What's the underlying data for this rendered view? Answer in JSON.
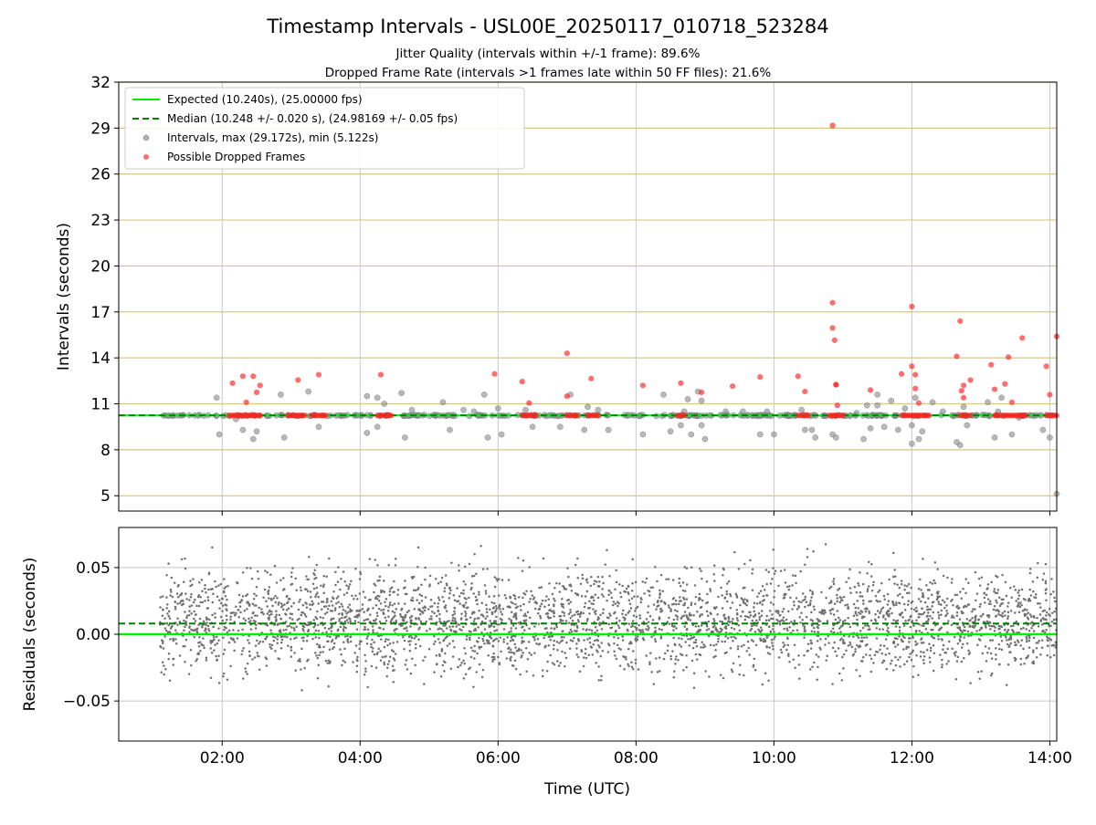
{
  "title": "Timestamp Intervals - USL00E_20250117_010718_523284",
  "subtitle_1": "Jitter Quality (intervals within +/-1 frame): 89.6%",
  "subtitle_2": "Dropped Frame Rate (intervals >1 frames late within 50 FF files): 21.6%",
  "colors": {
    "expected": "#00ee00",
    "median": "#008000",
    "intervals": "#888888",
    "dropped": "#ff2020",
    "hgrid_top": "#d8c48a",
    "grid": "#c8c8c8",
    "residuals": "#707070"
  },
  "chart_data": [
    {
      "type": "scatter",
      "ylabel": "Intervals (seconds)",
      "xlim_hours": [
        0.5,
        14.1
      ],
      "ylim": [
        4,
        32
      ],
      "yticks": [
        5,
        8,
        11,
        14,
        17,
        20,
        23,
        26,
        29,
        32
      ],
      "ytick_labels": [
        "5",
        "8",
        "11",
        "14",
        "17",
        "20",
        "23",
        "26",
        "29",
        "32"
      ],
      "grid": true,
      "legend_placement": "top-left",
      "legend": [
        {
          "label": "Expected (10.240s), (25.00000 fps)",
          "style": "solid-line",
          "color": "#00ee00"
        },
        {
          "label": "Median (10.248 +/- 0.020 s), (24.98169 +/- 0.05 fps)",
          "style": "dashed-line",
          "color": "#008000"
        },
        {
          "label": "Intervals, max (29.172s), min (5.122s)",
          "style": "marker",
          "color": "#888888"
        },
        {
          "label": "Possible Dropped Frames",
          "style": "marker",
          "color": "#ff2020"
        }
      ],
      "expected_interval": 10.24,
      "median_interval": 10.248,
      "series": [
        {
          "name": "Intervals, max (29.172s), min (5.122s)",
          "x": [
            1.15,
            1.4,
            1.6,
            1.92,
            1.96,
            2.2,
            2.3,
            2.45,
            2.5,
            2.85,
            2.9,
            3.25,
            3.4,
            4.1,
            4.1,
            4.25,
            4.25,
            4.35,
            4.6,
            4.65,
            4.75,
            5.2,
            5.3,
            5.5,
            5.65,
            5.8,
            5.85,
            6.0,
            6.05,
            6.4,
            6.5,
            6.9,
            7.05,
            7.25,
            7.3,
            7.45,
            7.6,
            8.1,
            8.4,
            8.5,
            8.65,
            8.7,
            8.75,
            8.8,
            8.9,
            8.95,
            8.95,
            9.0,
            9.3,
            9.55,
            9.8,
            9.9,
            10.0,
            10.4,
            10.45,
            10.55,
            10.6,
            10.85,
            10.9,
            11.2,
            11.3,
            11.35,
            11.4,
            11.5,
            11.5,
            11.6,
            11.7,
            11.8,
            11.9,
            12.0,
            12.0,
            12.05,
            12.1,
            12.15,
            12.3,
            12.45,
            12.6,
            12.65,
            12.7,
            12.75,
            12.8,
            13.1,
            13.2,
            13.25,
            13.3,
            13.45,
            13.55,
            13.9,
            14.0,
            14.1
          ],
          "y": [
            10.24,
            10.24,
            10.24,
            11.4,
            9.0,
            10.0,
            9.3,
            8.7,
            9.2,
            11.6,
            8.8,
            11.8,
            9.5,
            11.5,
            9.1,
            11.4,
            9.5,
            11.0,
            11.7,
            8.8,
            10.6,
            11.1,
            9.3,
            10.6,
            10.5,
            11.6,
            8.8,
            10.7,
            9.0,
            10.6,
            9.5,
            9.5,
            11.6,
            9.3,
            10.8,
            10.6,
            9.3,
            9.0,
            11.6,
            9.2,
            9.6,
            10.5,
            11.3,
            9.0,
            11.8,
            9.6,
            11.2,
            8.7,
            10.5,
            10.5,
            9.0,
            10.5,
            9.0,
            10.6,
            9.3,
            9.3,
            8.8,
            9.0,
            8.8,
            10.4,
            8.7,
            10.9,
            9.4,
            11.6,
            10.9,
            9.5,
            11.2,
            9.3,
            10.7,
            8.4,
            9.6,
            11.4,
            8.7,
            9.2,
            11.1,
            10.5,
            10.2,
            8.5,
            8.3,
            10.8,
            9.6,
            11.1,
            8.8,
            10.5,
            11.4,
            9.0,
            10.1,
            9.3,
            8.8,
            5.12
          ]
        },
        {
          "name": "Possible Dropped Frames",
          "x": [
            2.15,
            2.35,
            2.45,
            2.5,
            2.55,
            2.3,
            3.1,
            3.4,
            4.3,
            5.95,
            6.35,
            6.45,
            7.0,
            7.0,
            7.35,
            8.1,
            8.65,
            8.95,
            9.4,
            9.8,
            10.35,
            10.45,
            10.85,
            10.85,
            10.85,
            10.88,
            10.9,
            10.9,
            10.92,
            11.4,
            11.85,
            12.0,
            12.0,
            12.05,
            12.05,
            12.1,
            12.65,
            12.7,
            12.72,
            12.75,
            12.75,
            12.85,
            13.15,
            13.2,
            13.35,
            13.4,
            13.45,
            13.6,
            13.95,
            14.0,
            14.1
          ],
          "y": [
            12.35,
            11.1,
            12.8,
            11.75,
            12.2,
            12.8,
            12.55,
            12.9,
            12.9,
            12.95,
            12.45,
            11.05,
            14.3,
            11.5,
            12.65,
            12.2,
            12.35,
            11.75,
            12.15,
            12.75,
            12.8,
            11.8,
            29.17,
            17.6,
            15.95,
            15.15,
            12.25,
            12.25,
            10.9,
            11.9,
            12.95,
            17.35,
            13.45,
            12.9,
            12.0,
            11.05,
            14.1,
            16.4,
            11.85,
            12.2,
            11.4,
            12.55,
            13.55,
            11.95,
            12.3,
            14.05,
            11.1,
            15.3,
            13.45,
            11.6,
            15.4
          ]
        }
      ],
      "dense_bands": [
        {
          "series": "Intervals, max (29.172s), min (5.122s)",
          "x_range": [
            1.1,
            14.1
          ],
          "y": 10.24
        },
        {
          "series": "Possible Dropped Frames",
          "x_ranges": [
            [
              2.1,
              2.55
            ],
            [
              2.95,
              3.2
            ],
            [
              3.3,
              3.5
            ],
            [
              4.25,
              4.45
            ],
            [
              6.35,
              6.55
            ],
            [
              7.0,
              7.15
            ],
            [
              7.3,
              7.45
            ],
            [
              8.6,
              8.7
            ],
            [
              10.35,
              10.5
            ],
            [
              10.8,
              11.0
            ],
            [
              11.85,
              12.25
            ],
            [
              12.7,
              12.85
            ],
            [
              13.2,
              13.25
            ],
            [
              13.3,
              13.65
            ],
            [
              13.95,
              14.1
            ]
          ],
          "y": 10.24
        }
      ]
    },
    {
      "type": "scatter",
      "xlabel": "Time (UTC)",
      "ylabel": "Residuals (seconds)",
      "xlim_hours": [
        0.5,
        14.1
      ],
      "ylim": [
        -0.08,
        0.08
      ],
      "yticks": [
        -0.05,
        0.0,
        0.05
      ],
      "ytick_labels": [
        "−0.05",
        "0.00",
        "0.05"
      ],
      "xticks_hours": [
        2,
        4,
        6,
        8,
        10,
        12,
        14
      ],
      "xtick_labels": [
        "02:00",
        "04:00",
        "06:00",
        "08:00",
        "10:00",
        "12:00",
        "14:00"
      ],
      "grid": true,
      "expected_residual": 0.0,
      "median_residual": 0.008,
      "series": [
        {
          "name": "Residuals",
          "x_range": [
            1.1,
            14.1
          ],
          "center": 0.01,
          "spread": 0.025,
          "count": 3600
        }
      ]
    }
  ]
}
